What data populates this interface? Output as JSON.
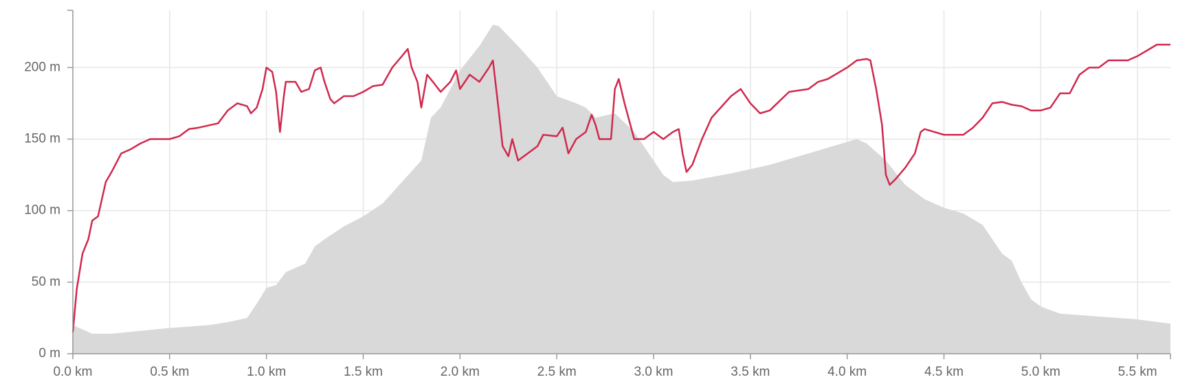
{
  "chart_data": {
    "type": "line",
    "xlim": [
      0,
      5.67
    ],
    "ylim": [
      0,
      240
    ],
    "grid": true,
    "xticks": [
      {
        "value": 0,
        "label": "0.0 km"
      },
      {
        "value": 0.5,
        "label": "0.5 km"
      },
      {
        "value": 1,
        "label": "1.0 km"
      },
      {
        "value": 1.5,
        "label": "1.5 km"
      },
      {
        "value": 2,
        "label": "2.0 km"
      },
      {
        "value": 2.5,
        "label": "2.5 km"
      },
      {
        "value": 3,
        "label": "3.0 km"
      },
      {
        "value": 3.5,
        "label": "3.5 km"
      },
      {
        "value": 4,
        "label": "4.0 km"
      },
      {
        "value": 4.5,
        "label": "4.5 km"
      },
      {
        "value": 5,
        "label": "5.0 km"
      },
      {
        "value": 5.5,
        "label": "5.5 km"
      }
    ],
    "yticks": [
      {
        "value": 0,
        "label": "0 m"
      },
      {
        "value": 50,
        "label": "50 m"
      },
      {
        "value": 100,
        "label": "100 m"
      },
      {
        "value": 150,
        "label": "150 m"
      },
      {
        "value": 200,
        "label": "200 m"
      }
    ],
    "series": [
      {
        "type": "area",
        "color": "#d9d9d9",
        "x": [
          0,
          0.1,
          0.2,
          0.5,
          0.7,
          0.8,
          0.9,
          0.95,
          1.0,
          1.05,
          1.1,
          1.2,
          1.25,
          1.3,
          1.4,
          1.5,
          1.6,
          1.7,
          1.8,
          1.85,
          1.9,
          2.0,
          2.1,
          2.17,
          2.2,
          2.3,
          2.4,
          2.5,
          2.6,
          2.65,
          2.7,
          2.8,
          2.9,
          3.0,
          3.05,
          3.1,
          3.2,
          3.4,
          3.6,
          3.8,
          4.0,
          4.05,
          4.1,
          4.2,
          4.3,
          4.4,
          4.5,
          4.6,
          4.7,
          4.75,
          4.8,
          4.85,
          4.9,
          4.95,
          5.0,
          5.1,
          5.3,
          5.5,
          5.67
        ],
        "values": [
          20,
          14,
          14,
          18,
          20,
          22,
          25,
          35,
          46,
          48,
          57,
          63,
          75,
          80,
          89,
          96,
          105,
          120,
          135,
          165,
          172,
          198,
          215,
          230,
          229,
          215,
          200,
          180,
          175,
          172,
          165,
          168,
          155,
          135,
          125,
          120,
          121,
          126,
          132,
          140,
          148,
          150,
          147,
          135,
          118,
          108,
          102,
          98,
          90,
          80,
          70,
          65,
          50,
          38,
          33,
          28,
          26,
          24,
          21
        ]
      },
      {
        "type": "line",
        "color": "#d0284c",
        "x": [
          0,
          0.02,
          0.05,
          0.08,
          0.1,
          0.13,
          0.17,
          0.2,
          0.25,
          0.3,
          0.35,
          0.4,
          0.5,
          0.55,
          0.6,
          0.65,
          0.75,
          0.8,
          0.85,
          0.9,
          0.92,
          0.95,
          0.98,
          1.0,
          1.03,
          1.05,
          1.07,
          1.09,
          1.1,
          1.15,
          1.18,
          1.22,
          1.25,
          1.28,
          1.3,
          1.33,
          1.35,
          1.4,
          1.45,
          1.5,
          1.55,
          1.6,
          1.65,
          1.7,
          1.73,
          1.75,
          1.78,
          1.8,
          1.83,
          1.86,
          1.9,
          1.95,
          1.98,
          2.0,
          2.05,
          2.1,
          2.15,
          2.17,
          2.2,
          2.22,
          2.25,
          2.27,
          2.3,
          2.35,
          2.4,
          2.43,
          2.5,
          2.53,
          2.56,
          2.6,
          2.65,
          2.68,
          2.7,
          2.72,
          2.78,
          2.8,
          2.82,
          2.85,
          2.9,
          2.95,
          3.0,
          3.05,
          3.1,
          3.13,
          3.15,
          3.17,
          3.2,
          3.25,
          3.3,
          3.4,
          3.45,
          3.5,
          3.55,
          3.6,
          3.7,
          3.8,
          3.85,
          3.9,
          4.0,
          4.05,
          4.1,
          4.12,
          4.15,
          4.18,
          4.2,
          4.22,
          4.25,
          4.3,
          4.35,
          4.38,
          4.4,
          4.45,
          4.5,
          4.6,
          4.65,
          4.7,
          4.75,
          4.8,
          4.85,
          4.9,
          4.95,
          5.0,
          5.05,
          5.1,
          5.15,
          5.2,
          5.25,
          5.3,
          5.35,
          5.45,
          5.5,
          5.6,
          5.67
        ],
        "values": [
          15,
          45,
          70,
          80,
          93,
          96,
          120,
          127,
          140,
          143,
          147,
          150,
          150,
          152,
          157,
          158,
          161,
          170,
          175,
          173,
          168,
          172,
          185,
          200,
          197,
          183,
          155,
          180,
          190,
          190,
          183,
          185,
          198,
          200,
          190,
          178,
          175,
          180,
          180,
          183,
          187,
          188,
          200,
          208,
          213,
          200,
          190,
          172,
          195,
          190,
          183,
          190,
          198,
          185,
          195,
          190,
          200,
          205,
          170,
          145,
          138,
          150,
          135,
          140,
          145,
          153,
          152,
          158,
          140,
          150,
          155,
          167,
          160,
          150,
          150,
          185,
          192,
          175,
          150,
          150,
          155,
          150,
          155,
          157,
          140,
          127,
          132,
          150,
          165,
          180,
          185,
          175,
          168,
          170,
          183,
          185,
          190,
          192,
          200,
          205,
          206,
          205,
          185,
          160,
          125,
          118,
          122,
          130,
          140,
          155,
          157,
          155,
          153,
          153,
          158,
          165,
          175,
          176,
          174,
          173,
          170,
          170,
          172,
          182,
          182,
          195,
          200,
          200,
          205,
          205,
          208,
          216,
          216
        ]
      }
    ]
  }
}
